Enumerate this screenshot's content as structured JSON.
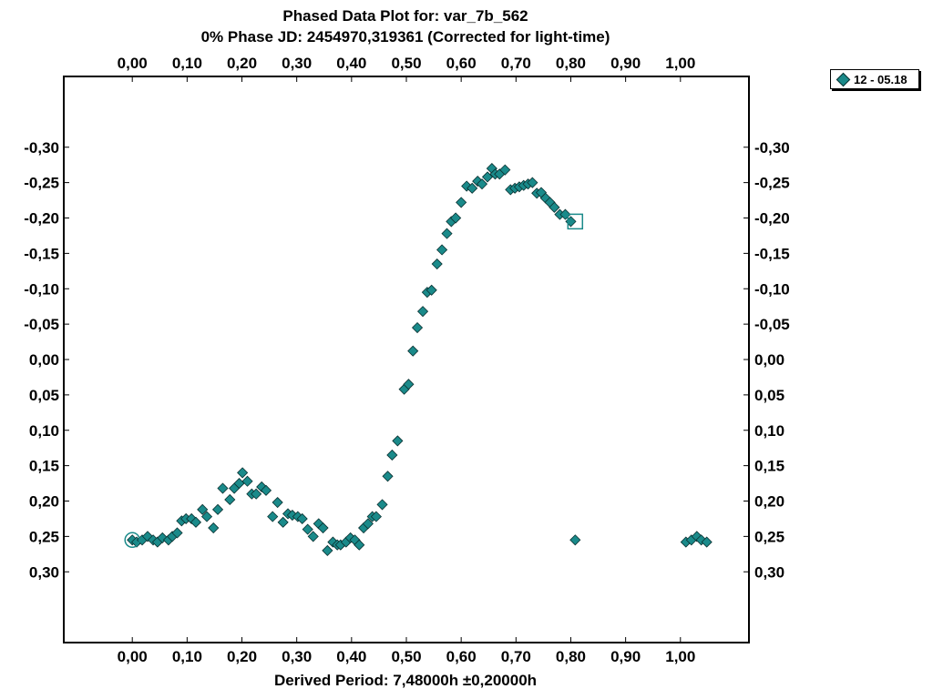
{
  "chart_data": {
    "type": "scatter",
    "title": "Phased Data Plot for: var_7b_562",
    "subtitle": "0% Phase JD:  2454970,319361   (Corrected for light-time)",
    "xlabel": "Derived Period: 7,48000h   ±0,20000h",
    "ylabel": "",
    "xlim": [
      -0.125,
      1.125
    ],
    "ylim": [
      0.4,
      -0.4
    ],
    "y_inverted": true,
    "grid": false,
    "legend_position": "top-right outside",
    "x_ticks": [
      "0,00",
      "0,10",
      "0,20",
      "0,30",
      "0,40",
      "0,50",
      "0,60",
      "0,70",
      "0,80",
      "0,90",
      "1,00"
    ],
    "y_ticks": [
      "-0,30",
      "-0,25",
      "-0,20",
      "-0,15",
      "-0,10",
      "-0,05",
      "0,00",
      "0,05",
      "0,10",
      "0,15",
      "0,20",
      "0,25",
      "0,30"
    ],
    "series": [
      {
        "name": "12 - 05.18",
        "color": "#1a8a8a",
        "marker": "diamond",
        "x": [
          0.0,
          0.008,
          0.018,
          0.028,
          0.038,
          0.046,
          0.055,
          0.066,
          0.073,
          0.082,
          0.09,
          0.098,
          0.108,
          0.116,
          0.128,
          0.136,
          0.148,
          0.156,
          0.165,
          0.178,
          0.186,
          0.195,
          0.201,
          0.21,
          0.218,
          0.226,
          0.236,
          0.244,
          0.256,
          0.265,
          0.275,
          0.284,
          0.292,
          0.302,
          0.31,
          0.32,
          0.33,
          0.34,
          0.348,
          0.356,
          0.366,
          0.374,
          0.38,
          0.39,
          0.398,
          0.406,
          0.414,
          0.422,
          0.43,
          0.438,
          0.445,
          0.456,
          0.466,
          0.474,
          0.484,
          0.496,
          0.504,
          0.512,
          0.52,
          0.53,
          0.538,
          0.546,
          0.556,
          0.565,
          0.574,
          0.582,
          0.59,
          0.6,
          0.61,
          0.62,
          0.63,
          0.638,
          0.648,
          0.656,
          0.662,
          0.67,
          0.68,
          0.69,
          0.698,
          0.706,
          0.714,
          0.722,
          0.73,
          0.738,
          0.746,
          0.754,
          0.762,
          0.77,
          0.78,
          0.79,
          0.8,
          0.808,
          1.01,
          1.02,
          1.03,
          1.038,
          1.048
        ],
        "y": [
          0.255,
          0.258,
          0.255,
          0.25,
          0.255,
          0.258,
          0.252,
          0.255,
          0.25,
          0.245,
          0.228,
          0.225,
          0.225,
          0.23,
          0.212,
          0.222,
          0.238,
          0.212,
          0.182,
          0.198,
          0.182,
          0.175,
          0.16,
          0.172,
          0.19,
          0.19,
          0.18,
          0.185,
          0.222,
          0.202,
          0.23,
          0.218,
          0.22,
          0.222,
          0.225,
          0.24,
          0.25,
          0.232,
          0.238,
          0.27,
          0.258,
          0.262,
          0.262,
          0.258,
          0.252,
          0.255,
          0.262,
          0.238,
          0.232,
          0.222,
          0.222,
          0.205,
          0.165,
          0.135,
          0.115,
          0.042,
          0.035,
          -0.012,
          -0.045,
          -0.068,
          -0.095,
          -0.098,
          -0.135,
          -0.155,
          -0.178,
          -0.195,
          -0.2,
          -0.222,
          -0.245,
          -0.242,
          -0.252,
          -0.248,
          -0.258,
          -0.27,
          -0.262,
          -0.262,
          -0.268,
          -0.24,
          -0.242,
          -0.244,
          -0.246,
          -0.248,
          -0.25,
          -0.235,
          -0.236,
          -0.228,
          -0.222,
          -0.215,
          -0.205,
          -0.205,
          -0.195,
          0.255,
          0.258,
          0.255,
          0.25,
          0.255,
          0.258
        ]
      }
    ],
    "markers_special": [
      {
        "shape": "circle",
        "x": 0.0,
        "y": 0.255
      },
      {
        "shape": "square",
        "x": 0.808,
        "y": -0.195
      }
    ]
  },
  "legend": {
    "label": "12 - 05.18"
  }
}
